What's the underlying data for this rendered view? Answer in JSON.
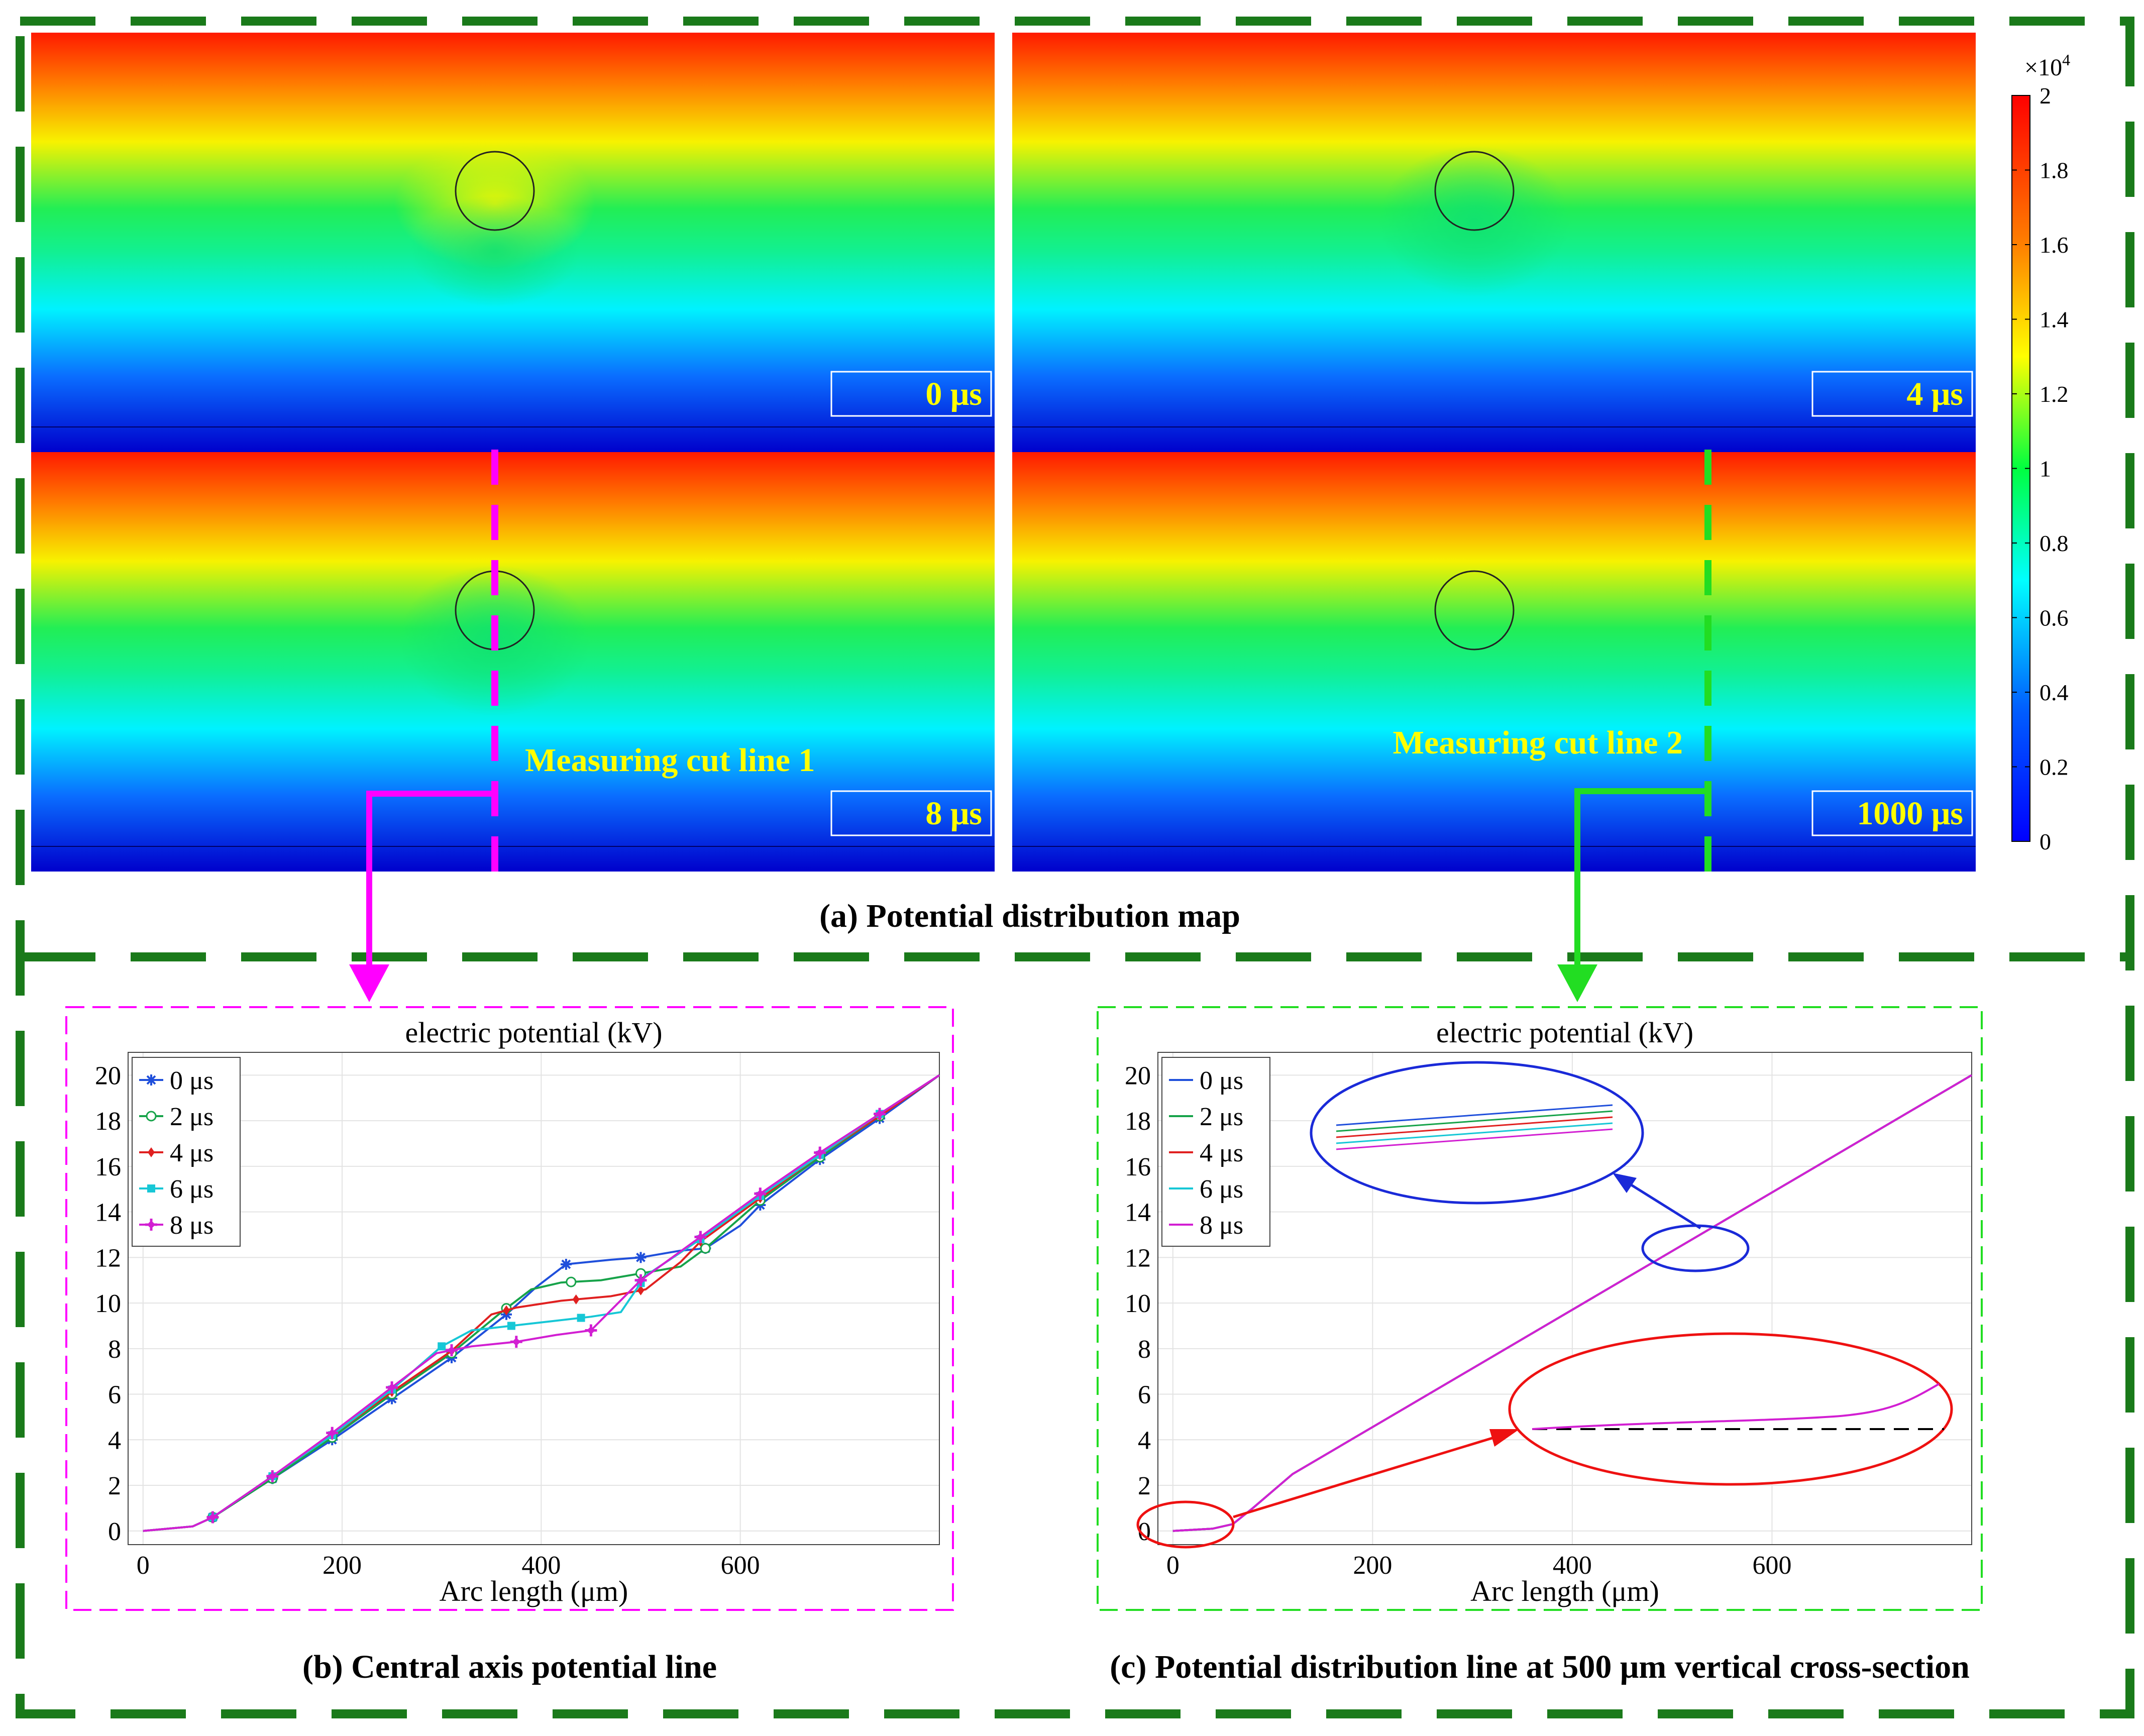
{
  "colorbar": {
    "multiplier": "×10",
    "exponent": "4",
    "ticks": [
      "2",
      "1.8",
      "1.6",
      "1.4",
      "1.2",
      "1",
      "0.8",
      "0.6",
      "0.4",
      "0.2",
      "0"
    ]
  },
  "maps": {
    "caption": "(a) Potential distribution map",
    "panels": [
      {
        "time_label": "0 μs"
      },
      {
        "time_label": "4 μs"
      },
      {
        "time_label": "8 μs"
      },
      {
        "time_label": "1000 μs"
      }
    ],
    "cut_line_1": "Measuring cut line 1",
    "cut_line_2": "Measuring cut line 2"
  },
  "colors": {
    "frame_green": "#1a7a1a",
    "cut1_magenta": "#ff00ff",
    "cut2_green": "#22dd22",
    "label_yellow": "#ffff00",
    "s0": "#1f4fdb",
    "s2": "#17a34a",
    "s4": "#e02020",
    "s6": "#17c7d6",
    "s8": "#d21fd2"
  },
  "chart_data": [
    {
      "type": "line",
      "title": "electric potential (kV)",
      "xlabel": "Arc length (μm)",
      "ylabel": "",
      "caption": "(b) Central axis potential line",
      "xlim": [
        -15,
        800
      ],
      "ylim": [
        -0.6,
        21
      ],
      "xticks": [
        "0",
        "200",
        "400",
        "600"
      ],
      "yticks": [
        "0",
        "2",
        "4",
        "6",
        "8",
        "10",
        "12",
        "14",
        "16",
        "18",
        "20"
      ],
      "grid": true,
      "legend_position": "top-left",
      "series": [
        {
          "name": "0 μs",
          "marker": "asterisk",
          "points": [
            [
              0,
              0
            ],
            [
              50,
              0.2
            ],
            [
              70,
              0.6
            ],
            [
              130,
              2.3
            ],
            [
              190,
              4.0
            ],
            [
              250,
              5.8
            ],
            [
              310,
              7.6
            ],
            [
              365,
              9.5
            ],
            [
              395,
              10.7
            ],
            [
              425,
              11.7
            ],
            [
              470,
              11.9
            ],
            [
              500,
              12.0
            ],
            [
              540,
              12.3
            ],
            [
              565,
              12.4
            ],
            [
              600,
              13.4
            ],
            [
              620,
              14.3
            ],
            [
              680,
              16.3
            ],
            [
              740,
              18.1
            ],
            [
              800,
              20
            ]
          ],
          "markers": [
            70,
            130,
            190,
            250,
            310,
            365,
            425,
            500,
            565,
            620,
            680,
            740
          ]
        },
        {
          "name": "2 μs",
          "marker": "circle",
          "points": [
            [
              0,
              0
            ],
            [
              50,
              0.2
            ],
            [
              70,
              0.6
            ],
            [
              130,
              2.3
            ],
            [
              190,
              4.1
            ],
            [
              250,
              6.0
            ],
            [
              310,
              7.8
            ],
            [
              360,
              9.6
            ],
            [
              390,
              10.6
            ],
            [
              420,
              10.9
            ],
            [
              460,
              11.0
            ],
            [
              500,
              11.3
            ],
            [
              540,
              11.6
            ],
            [
              565,
              12.4
            ],
            [
              620,
              14.5
            ],
            [
              680,
              16.4
            ],
            [
              740,
              18.2
            ],
            [
              800,
              20
            ]
          ],
          "markers": [
            70,
            130,
            190,
            250,
            310,
            365,
            430,
            500,
            565,
            620,
            680,
            740
          ]
        },
        {
          "name": "4 μs",
          "marker": "diamond",
          "points": [
            [
              0,
              0
            ],
            [
              50,
              0.2
            ],
            [
              70,
              0.6
            ],
            [
              130,
              2.4
            ],
            [
              190,
              4.2
            ],
            [
              250,
              6.1
            ],
            [
              310,
              7.9
            ],
            [
              350,
              9.5
            ],
            [
              375,
              9.8
            ],
            [
              420,
              10.1
            ],
            [
              470,
              10.3
            ],
            [
              505,
              10.6
            ],
            [
              540,
              11.8
            ],
            [
              560,
              12.7
            ],
            [
              620,
              14.6
            ],
            [
              680,
              16.5
            ],
            [
              740,
              18.2
            ],
            [
              800,
              20
            ]
          ],
          "markers": [
            70,
            130,
            190,
            250,
            310,
            365,
            435,
            500,
            560,
            620,
            680,
            740
          ]
        },
        {
          "name": "6 μs",
          "marker": "square",
          "points": [
            [
              0,
              0
            ],
            [
              50,
              0.2
            ],
            [
              70,
              0.6
            ],
            [
              130,
              2.4
            ],
            [
              190,
              4.2
            ],
            [
              250,
              6.2
            ],
            [
              300,
              8.1
            ],
            [
              330,
              8.8
            ],
            [
              370,
              9.0
            ],
            [
              410,
              9.2
            ],
            [
              450,
              9.4
            ],
            [
              480,
              9.6
            ],
            [
              505,
              11.2
            ],
            [
              560,
              12.8
            ],
            [
              620,
              14.7
            ],
            [
              680,
              16.5
            ],
            [
              740,
              18.3
            ],
            [
              800,
              20
            ]
          ],
          "markers": [
            70,
            130,
            190,
            250,
            300,
            370,
            440,
            500,
            560,
            620,
            680,
            740
          ]
        },
        {
          "name": "8 μs",
          "marker": "plus",
          "points": [
            [
              0,
              0
            ],
            [
              50,
              0.2
            ],
            [
              70,
              0.6
            ],
            [
              130,
              2.4
            ],
            [
              190,
              4.3
            ],
            [
              250,
              6.3
            ],
            [
              295,
              7.8
            ],
            [
              330,
              8.1
            ],
            [
              375,
              8.3
            ],
            [
              415,
              8.6
            ],
            [
              450,
              8.8
            ],
            [
              500,
              11.0
            ],
            [
              560,
              12.9
            ],
            [
              620,
              14.8
            ],
            [
              680,
              16.6
            ],
            [
              740,
              18.3
            ],
            [
              800,
              20
            ]
          ],
          "markers": [
            70,
            130,
            190,
            250,
            310,
            375,
            450,
            500,
            560,
            620,
            680,
            740
          ]
        }
      ]
    },
    {
      "type": "line",
      "title": "electric potential (kV)",
      "xlabel": "Arc length (μm)",
      "ylabel": "",
      "caption": "(c) Potential distribution line at 500 μm vertical cross-section",
      "xlim": [
        -15,
        800
      ],
      "ylim": [
        -0.6,
        21
      ],
      "xticks": [
        "0",
        "200",
        "400",
        "600"
      ],
      "yticks": [
        "0",
        "2",
        "4",
        "6",
        "8",
        "10",
        "12",
        "14",
        "16",
        "18",
        "20"
      ],
      "grid": true,
      "legend_position": "top-left",
      "series": [
        {
          "name": "0 μs",
          "points": [
            [
              0,
              0
            ],
            [
              40,
              0.1
            ],
            [
              60,
              0.3
            ],
            [
              80,
              1.0
            ],
            [
              120,
              2.5
            ],
            [
              800,
              20
            ]
          ]
        },
        {
          "name": "2 μs",
          "points": [
            [
              0,
              0
            ],
            [
              40,
              0.1
            ],
            [
              60,
              0.3
            ],
            [
              80,
              1.0
            ],
            [
              120,
              2.5
            ],
            [
              800,
              20
            ]
          ]
        },
        {
          "name": "4 μs",
          "points": [
            [
              0,
              0
            ],
            [
              40,
              0.1
            ],
            [
              60,
              0.3
            ],
            [
              80,
              1.0
            ],
            [
              120,
              2.5
            ],
            [
              800,
              20
            ]
          ]
        },
        {
          "name": "6 μs",
          "points": [
            [
              0,
              0
            ],
            [
              40,
              0.1
            ],
            [
              60,
              0.3
            ],
            [
              80,
              1.0
            ],
            [
              120,
              2.5
            ],
            [
              800,
              20
            ]
          ]
        },
        {
          "name": "8 μs",
          "points": [
            [
              0,
              0
            ],
            [
              40,
              0.1
            ],
            [
              60,
              0.3
            ],
            [
              80,
              1.0
            ],
            [
              120,
              2.5
            ],
            [
              800,
              20
            ]
          ]
        }
      ]
    }
  ]
}
